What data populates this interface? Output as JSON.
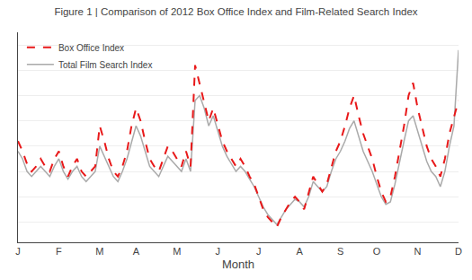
{
  "chart_data": {
    "type": "line",
    "title": "Figure 1 | Comparison of 2012 Box Office Index and Film-Related Search Index",
    "x_label": "Month",
    "categories": [
      "J",
      null,
      null,
      null,
      null,
      null,
      null,
      null,
      null,
      "F",
      null,
      null,
      null,
      null,
      null,
      null,
      null,
      null,
      "M",
      null,
      null,
      null,
      null,
      null,
      null,
      null,
      "A",
      null,
      null,
      null,
      null,
      null,
      null,
      null,
      null,
      "M",
      null,
      null,
      null,
      null,
      null,
      null,
      null,
      null,
      "J",
      null,
      null,
      null,
      null,
      null,
      null,
      null,
      null,
      "J",
      null,
      null,
      null,
      null,
      null,
      null,
      null,
      null,
      "A",
      null,
      null,
      null,
      null,
      null,
      null,
      null,
      null,
      "S",
      null,
      null,
      null,
      null,
      null,
      null,
      null,
      "O",
      null,
      null,
      null,
      null,
      null,
      null,
      null,
      null,
      "N",
      null,
      null,
      null,
      null,
      null,
      null,
      null,
      null,
      "D"
    ],
    "series": [
      {
        "name": "Total Film Search Index",
        "color": "#aaaaaa",
        "line_style": "solid",
        "values": [
          58,
          55,
          50,
          48,
          50,
          52,
          50,
          48,
          52,
          55,
          50,
          47,
          50,
          52,
          48,
          46,
          48,
          50,
          60,
          56,
          52,
          48,
          46,
          50,
          55,
          62,
          68,
          64,
          58,
          52,
          50,
          48,
          52,
          56,
          54,
          52,
          50,
          55,
          50,
          78,
          80,
          75,
          68,
          72,
          66,
          60,
          56,
          53,
          50,
          52,
          50,
          47,
          44,
          40,
          36,
          33,
          31,
          29,
          32,
          35,
          37,
          39,
          38,
          36,
          40,
          46,
          44,
          42,
          44,
          50,
          55,
          58,
          62,
          67,
          70,
          64,
          58,
          54,
          50,
          45,
          40,
          37,
          38,
          45,
          54,
          62,
          70,
          72,
          66,
          60,
          54,
          50,
          48,
          44,
          50,
          60,
          68,
          98
        ]
      },
      {
        "name": "Box Office Index",
        "color": "#e8191a",
        "line_style": "dashed",
        "values": [
          62,
          58,
          53,
          50,
          52,
          55,
          52,
          50,
          55,
          58,
          52,
          48,
          52,
          55,
          50,
          48,
          50,
          52,
          68,
          62,
          55,
          50,
          48,
          52,
          58,
          68,
          75,
          70,
          62,
          55,
          52,
          50,
          55,
          60,
          58,
          55,
          52,
          58,
          52,
          92,
          85,
          78,
          70,
          75,
          68,
          62,
          58,
          55,
          52,
          55,
          52,
          48,
          45,
          40,
          35,
          32,
          30,
          28,
          32,
          35,
          38,
          40,
          38,
          35,
          42,
          48,
          45,
          42,
          45,
          52,
          58,
          62,
          68,
          75,
          80,
          72,
          65,
          60,
          55,
          48,
          42,
          38,
          40,
          48,
          58,
          68,
          80,
          85,
          75,
          68,
          60,
          55,
          52,
          48,
          55,
          65,
          72,
          78
        ]
      }
    ],
    "ylim": [
      22,
      105
    ],
    "yticks": [
      30,
      40,
      50,
      60,
      70,
      80,
      90,
      100
    ],
    "grid": true,
    "legend": "upper left",
    "tick_labels": "x"
  }
}
